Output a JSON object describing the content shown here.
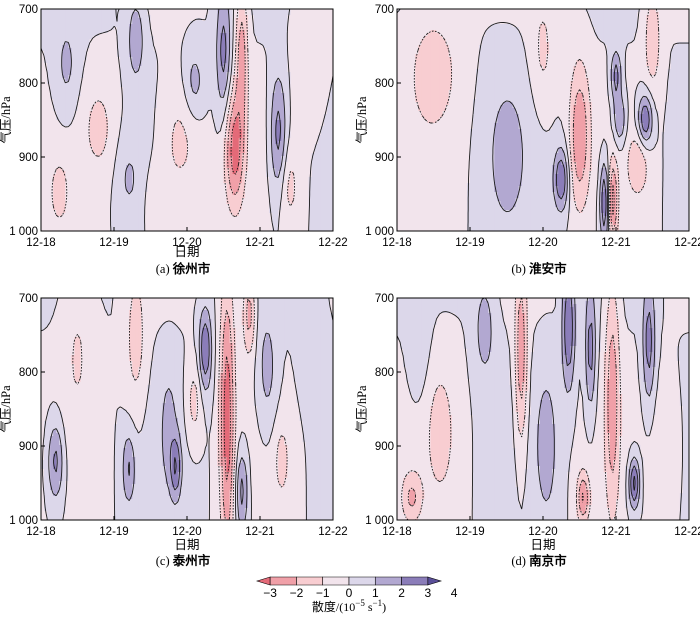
{
  "figure": {
    "colorbar": {
      "ticks": [
        "−3",
        "−2",
        "−1",
        "0",
        "1",
        "2",
        "3",
        "4"
      ],
      "label": "散度/(10",
      "label_exp": "−5",
      "label_unit": "s",
      "label_unit_exp": "−1",
      "label_close": ")",
      "colors": [
        "#e46a78",
        "#f0a0a8",
        "#f8cdd1",
        "#f2e4ec",
        "#dcd7ea",
        "#b2a8d1",
        "#8b7db9",
        "#5a4f98"
      ]
    },
    "contour_line_color": "#1a1a1a"
  },
  "chart_data": [
    {
      "type": "heatmap",
      "panel": "(a)",
      "title": "徐州市",
      "xlabel": "日期",
      "ylabel": "气压/hPa",
      "x_ticks": [
        "12-18",
        "12-19",
        "12-20",
        "12-21",
        "12-22"
      ],
      "y_ticks": [
        "700",
        "800",
        "900",
        "1 000"
      ],
      "x_range": [
        "12-18",
        "12-22"
      ],
      "y_range": [
        1000,
        700
      ],
      "features": [
        {
          "t": 2.1,
          "p": 800,
          "sx": 0.1,
          "sp": 35,
          "a": 1.5
        },
        {
          "t": 1.3,
          "p": 740,
          "sx": 0.08,
          "sp": 40,
          "a": 1.8
        },
        {
          "t": 0.35,
          "p": 780,
          "sx": 0.12,
          "sp": 50,
          "a": 1.3
        },
        {
          "t": 0.8,
          "p": 860,
          "sx": 0.15,
          "sp": 45,
          "a": -1.2
        },
        {
          "t": 0.25,
          "p": 950,
          "sx": 0.1,
          "sp": 35,
          "a": -1.2
        },
        {
          "t": 1.2,
          "p": 930,
          "sx": 0.12,
          "sp": 40,
          "a": 1.0
        },
        {
          "t": 1.6,
          "p": 960,
          "sx": 0.12,
          "sp": 35,
          "a": -0.9
        },
        {
          "t": 1.9,
          "p": 880,
          "sx": 0.2,
          "sp": 60,
          "a": -1.5
        },
        {
          "t": 2.65,
          "p": 890,
          "sx": 0.09,
          "sp": 55,
          "a": -3.3
        },
        {
          "t": 2.75,
          "p": 760,
          "sx": 0.06,
          "sp": 70,
          "a": -2.5
        },
        {
          "t": 2.5,
          "p": 760,
          "sx": 0.07,
          "sp": 60,
          "a": 2.4
        },
        {
          "t": 3.25,
          "p": 870,
          "sx": 0.08,
          "sp": 60,
          "a": 2.6
        },
        {
          "t": 3.4,
          "p": 940,
          "sx": 0.1,
          "sp": 40,
          "a": -1.2
        },
        {
          "t": 3.7,
          "p": 760,
          "sx": 0.15,
          "sp": 60,
          "a": -1.0
        }
      ]
    },
    {
      "type": "heatmap",
      "panel": "(b)",
      "title": "淮安市",
      "xlabel": "",
      "ylabel": "气压/hPa",
      "x_ticks": [
        "12-18",
        "12-19",
        "12-20",
        "12-21",
        "12-22"
      ],
      "y_ticks": [
        "700",
        "800",
        "900",
        "1 000"
      ],
      "x_range": [
        "12-18",
        "12-22"
      ],
      "y_range": [
        1000,
        700
      ],
      "features": [
        {
          "t": 0.5,
          "p": 780,
          "sx": 0.25,
          "sp": 60,
          "a": -1.5
        },
        {
          "t": 1.5,
          "p": 900,
          "sx": 0.2,
          "sp": 80,
          "a": 1.2
        },
        {
          "t": 2.0,
          "p": 760,
          "sx": 0.12,
          "sp": 60,
          "a": -1.2
        },
        {
          "t": 2.5,
          "p": 870,
          "sx": 0.1,
          "sp": 70,
          "a": -2.8
        },
        {
          "t": 2.25,
          "p": 930,
          "sx": 0.07,
          "sp": 30,
          "a": 3.0
        },
        {
          "t": 2.85,
          "p": 960,
          "sx": 0.05,
          "sp": 40,
          "a": 3.5
        },
        {
          "t": 2.95,
          "p": 960,
          "sx": 0.05,
          "sp": 40,
          "a": -3.5
        },
        {
          "t": 3.05,
          "p": 850,
          "sx": 0.06,
          "sp": 25,
          "a": 2.2
        },
        {
          "t": 3.4,
          "p": 850,
          "sx": 0.07,
          "sp": 25,
          "a": 3.2
        },
        {
          "t": 3.3,
          "p": 910,
          "sx": 0.1,
          "sp": 30,
          "a": -1.8
        },
        {
          "t": 3.5,
          "p": 740,
          "sx": 0.08,
          "sp": 50,
          "a": -1.8
        },
        {
          "t": 3.0,
          "p": 790,
          "sx": 0.05,
          "sp": 25,
          "a": 2.5
        }
      ]
    },
    {
      "type": "heatmap",
      "panel": "(c)",
      "title": "泰州市",
      "xlabel": "日期",
      "ylabel": "气压/hPa",
      "x_ticks": [
        "12-18",
        "12-19",
        "12-20",
        "12-21",
        "12-22"
      ],
      "y_ticks": [
        "700",
        "800",
        "900",
        "1 000"
      ],
      "x_range": [
        "12-18",
        "12-22"
      ],
      "y_range": [
        1000,
        700
      ],
      "features": [
        {
          "t": 0.2,
          "p": 920,
          "sx": 0.08,
          "sp": 40,
          "a": 2.5
        },
        {
          "t": 0.5,
          "p": 760,
          "sx": 0.15,
          "sp": 80,
          "a": -1.0
        },
        {
          "t": 1.2,
          "p": 930,
          "sx": 0.06,
          "sp": 35,
          "a": 2.0
        },
        {
          "t": 1.3,
          "p": 760,
          "sx": 0.1,
          "sp": 70,
          "a": -1.5
        },
        {
          "t": 1.75,
          "p": 880,
          "sx": 0.08,
          "sp": 60,
          "a": 1.2
        },
        {
          "t": 1.85,
          "p": 930,
          "sx": 0.05,
          "sp": 30,
          "a": 2.5
        },
        {
          "t": 2.25,
          "p": 770,
          "sx": 0.06,
          "sp": 40,
          "a": 3.0
        },
        {
          "t": 2.1,
          "p": 840,
          "sx": 0.08,
          "sp": 40,
          "a": -1.5
        },
        {
          "t": 2.55,
          "p": 860,
          "sx": 0.07,
          "sp": 140,
          "a": -3.5
        },
        {
          "t": 2.75,
          "p": 960,
          "sx": 0.06,
          "sp": 40,
          "a": 2.5
        },
        {
          "t": 2.85,
          "p": 720,
          "sx": 0.06,
          "sp": 40,
          "a": -2.5
        },
        {
          "t": 3.1,
          "p": 800,
          "sx": 0.1,
          "sp": 60,
          "a": 1.5
        },
        {
          "t": 3.3,
          "p": 920,
          "sx": 0.08,
          "sp": 40,
          "a": -1.2
        },
        {
          "t": 3.7,
          "p": 740,
          "sx": 0.12,
          "sp": 60,
          "a": 1.0
        }
      ]
    },
    {
      "type": "heatmap",
      "panel": "(d)",
      "title": "南京市",
      "xlabel": "日期",
      "ylabel": "气压/hPa",
      "x_ticks": [
        "12-18",
        "12-19",
        "12-20",
        "12-21",
        "12-22"
      ],
      "y_ticks": [
        "700",
        "800",
        "900",
        "1 000"
      ],
      "x_range": [
        "12-18",
        "12-22"
      ],
      "y_range": [
        1000,
        700
      ],
      "features": [
        {
          "t": 0.2,
          "p": 970,
          "sx": 0.1,
          "sp": 25,
          "a": -2.0
        },
        {
          "t": 0.3,
          "p": 760,
          "sx": 0.1,
          "sp": 60,
          "a": 1.0
        },
        {
          "t": 0.6,
          "p": 880,
          "sx": 0.15,
          "sp": 70,
          "a": -1.2
        },
        {
          "t": 1.2,
          "p": 740,
          "sx": 0.1,
          "sp": 50,
          "a": 1.5
        },
        {
          "t": 1.7,
          "p": 780,
          "sx": 0.06,
          "sp": 90,
          "a": -2.8
        },
        {
          "t": 2.05,
          "p": 900,
          "sx": 0.1,
          "sp": 70,
          "a": 1.5
        },
        {
          "t": 2.35,
          "p": 740,
          "sx": 0.06,
          "sp": 60,
          "a": 3.0
        },
        {
          "t": 2.55,
          "p": 970,
          "sx": 0.06,
          "sp": 25,
          "a": -3.0
        },
        {
          "t": 2.65,
          "p": 770,
          "sx": 0.05,
          "sp": 60,
          "a": 2.5
        },
        {
          "t": 2.95,
          "p": 830,
          "sx": 0.07,
          "sp": 120,
          "a": -2.5
        },
        {
          "t": 3.25,
          "p": 950,
          "sx": 0.05,
          "sp": 25,
          "a": 3.5
        },
        {
          "t": 3.45,
          "p": 760,
          "sx": 0.06,
          "sp": 60,
          "a": 2.5
        },
        {
          "t": 3.7,
          "p": 900,
          "sx": 0.12,
          "sp": 60,
          "a": -1.0
        }
      ]
    }
  ]
}
